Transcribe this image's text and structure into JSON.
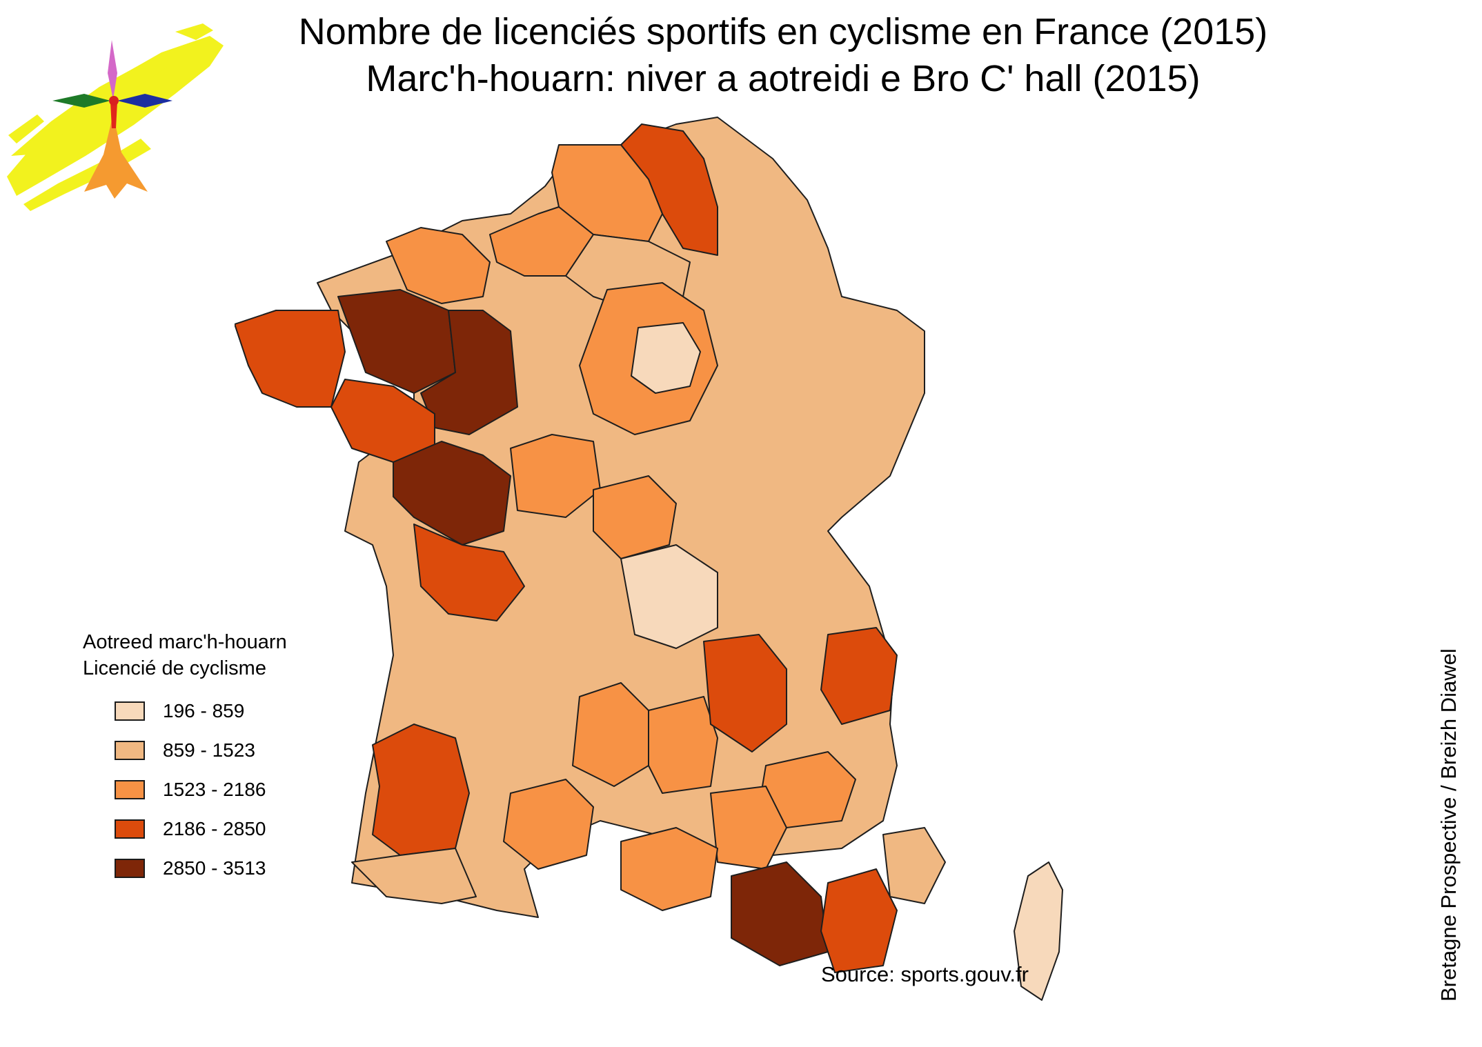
{
  "title": {
    "line1": "Nombre de licenciés sportifs en cyclisme en France (2015)",
    "line2": "Marc'h-houarn: niver a aotreidi e Bro C' hall (2015)"
  },
  "legend": {
    "title_line1": "Aotreed marc'h-houarn",
    "title_line2": "Licencié de cyclisme",
    "classes": [
      {
        "label": "196 - 859",
        "color": "#f7d9bb"
      },
      {
        "label": "859 - 1523",
        "color": "#f0b882"
      },
      {
        "label": "1523 - 2186",
        "color": "#f79245"
      },
      {
        "label": "2186 - 2850",
        "color": "#dc4b0c"
      },
      {
        "label": "2850 - 3513",
        "color": "#7e2608"
      }
    ]
  },
  "source": "Source: sports.gouv.fr",
  "credit": "Bretagne Prospective / Breizh Diawel",
  "logo_icon": "rose-compass-flame-logo",
  "map": {
    "country": "France",
    "boundary_color": "#1e1e1e",
    "regions": [
      {
        "name": "Finistère",
        "class": 3
      },
      {
        "name": "Côtes-d'Armor",
        "class": 4
      },
      {
        "name": "Morbihan",
        "class": 3
      },
      {
        "name": "Ille-et-Vilaine",
        "class": 4
      },
      {
        "name": "Loire-Atlantique",
        "class": 4
      },
      {
        "name": "Vendée",
        "class": 3
      },
      {
        "name": "Gironde",
        "class": 3
      },
      {
        "name": "Nord",
        "class": 3
      },
      {
        "name": "Rhône",
        "class": 3
      },
      {
        "name": "Isère",
        "class": 3
      },
      {
        "name": "Bouches-du-Rhône",
        "class": 4
      },
      {
        "name": "Var",
        "class": 3
      },
      {
        "name": "Corse",
        "class": 0
      }
    ]
  }
}
